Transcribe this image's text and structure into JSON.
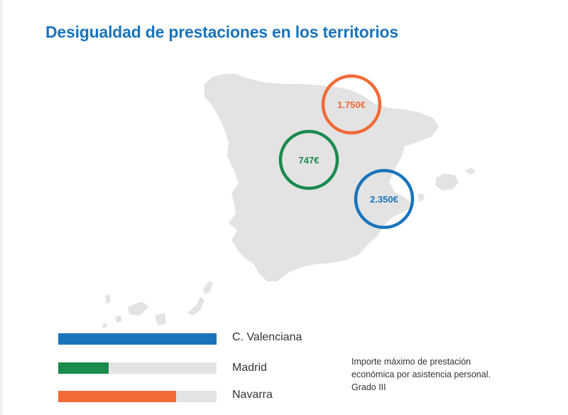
{
  "title": "Desigualdad de prestaciones en los territorios",
  "colors": {
    "valenciana": "#1a74bb",
    "madrid": "#1a8a4e",
    "navarra": "#f26a35",
    "map_fill": "#e3e3e3",
    "track": "#e3e3e3"
  },
  "chart_data": {
    "type": "bar",
    "orientation": "horizontal",
    "categories": [
      "C. Valenciana",
      "Madrid",
      "Navarra"
    ],
    "values": [
      2350,
      747,
      1750
    ],
    "value_labels": [
      "2.350€",
      "747€",
      "1.750€"
    ],
    "unit": "€",
    "xlim": [
      0,
      2350
    ],
    "annotation_lines": [
      "Importe máximo de prestación",
      "económica por asistencia personal.",
      "Grado III"
    ]
  }
}
